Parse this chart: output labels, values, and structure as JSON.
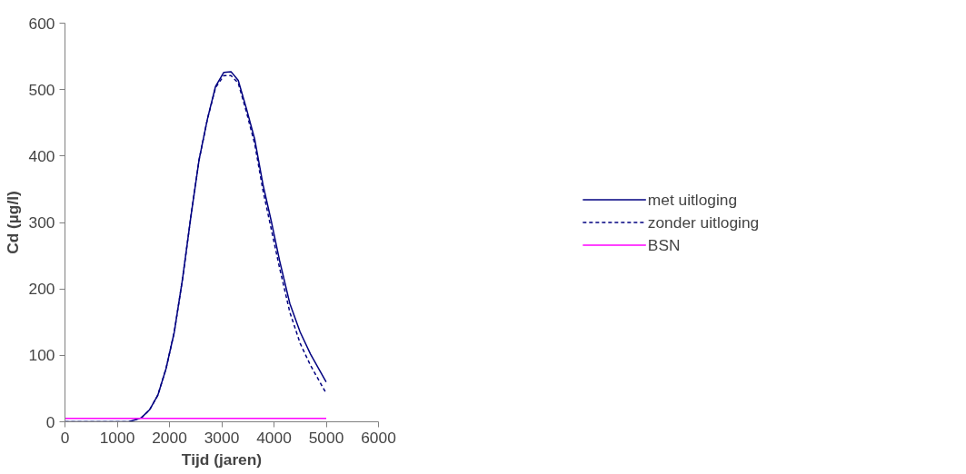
{
  "chart_data": {
    "type": "line",
    "xlabel": "Tijd (jaren)",
    "ylabel": "Cd (µg/l)",
    "xlim": [
      0,
      6000
    ],
    "ylim": [
      0,
      600
    ],
    "xticks": [
      0,
      1000,
      2000,
      3000,
      4000,
      5000,
      6000
    ],
    "yticks": [
      0,
      100,
      200,
      300,
      400,
      500,
      600
    ],
    "grid": false,
    "legend": "right",
    "marker": "none",
    "series": [
      {
        "name": "met uitloging",
        "color": "#000080",
        "line_style": "solid",
        "x": [
          0,
          1224,
          1461,
          1619,
          1777,
          1934,
          2092,
          2250,
          2408,
          2566,
          2724,
          2882,
          3040,
          3178,
          3316,
          3474,
          3632,
          3790,
          3948,
          4106,
          4303,
          4501,
          4698,
          4998
        ],
        "values": [
          0,
          0,
          6,
          18,
          40,
          80,
          135,
          215,
          308,
          394,
          455,
          505,
          526,
          527,
          514,
          471,
          425,
          357,
          302,
          243,
          178,
          135,
          102,
          60
        ]
      },
      {
        "name": "zonder uitloging",
        "color": "#000080",
        "line_style": "dashed",
        "x": [
          0,
          1224,
          1461,
          1619,
          1777,
          1934,
          2092,
          2250,
          2408,
          2566,
          2724,
          2882,
          3040,
          3178,
          3316,
          3474,
          3632,
          3790,
          3948,
          4106,
          4303,
          4501,
          4698,
          4998
        ],
        "values": [
          0,
          0,
          6,
          18,
          40,
          80,
          135,
          215,
          308,
          394,
          455,
          503,
          521,
          521,
          510,
          466,
          418,
          348,
          290,
          232,
          165,
          118,
          85,
          43
        ]
      },
      {
        "name": "BSN",
        "color": "#ff00ff",
        "line_style": "solid",
        "x": [
          0,
          5000
        ],
        "values": [
          5,
          5
        ]
      }
    ]
  }
}
